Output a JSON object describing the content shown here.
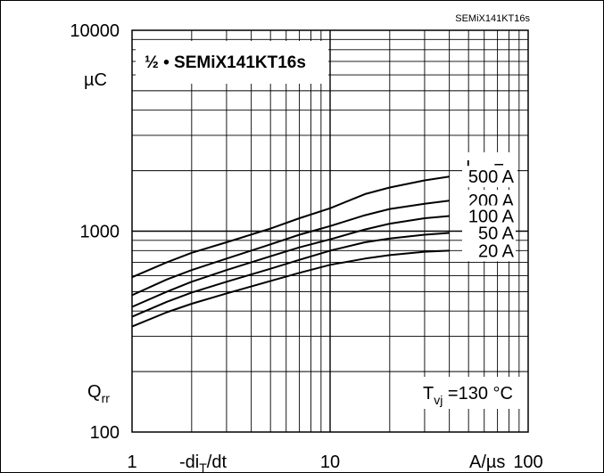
{
  "chart_data": {
    "type": "line",
    "header_tag": "SEMiX141KT16s",
    "title": "½ • SEMiX141KT16s",
    "xscale": "log",
    "yscale": "log",
    "xlim": [
      1,
      100
    ],
    "ylim": [
      100,
      10000
    ],
    "grid": true,
    "x_tick_labels": [
      {
        "value": 1,
        "text": "1"
      },
      {
        "value": 10,
        "text": "10"
      },
      {
        "value": 100,
        "text": "100"
      }
    ],
    "y_tick_labels": [
      {
        "value": 100,
        "text": "100"
      },
      {
        "value": 1000,
        "text": "1000"
      },
      {
        "value": 10000,
        "text": "10000"
      }
    ],
    "xlabel": {
      "main": "-di",
      "sub": "T",
      "tail": "/dt"
    },
    "x_unit": "A/µs",
    "ylabel": {
      "main": "Q",
      "sub": "rr"
    },
    "y_unit": "µC",
    "legend_title": {
      "main": "I",
      "sub": "FM",
      "tail": " ="
    },
    "condition": {
      "main": "T",
      "sub": "vj",
      "tail": " =130 °C"
    },
    "series": [
      {
        "name": "500 A",
        "x": [
          1,
          1.5,
          2,
          3,
          5,
          7,
          10,
          15,
          20,
          30,
          40
        ],
        "y": [
          590,
          700,
          780,
          880,
          1030,
          1160,
          1300,
          1530,
          1650,
          1790,
          1870
        ]
      },
      {
        "name": "200 A",
        "x": [
          1,
          1.5,
          2,
          3,
          5,
          7,
          10,
          15,
          20,
          30,
          40
        ],
        "y": [
          480,
          575,
          640,
          730,
          860,
          960,
          1060,
          1200,
          1290,
          1370,
          1420
        ]
      },
      {
        "name": "100 A",
        "x": [
          1,
          1.5,
          2,
          3,
          5,
          7,
          10,
          15,
          20,
          30,
          40
        ],
        "y": [
          420,
          500,
          560,
          640,
          750,
          830,
          910,
          1020,
          1090,
          1160,
          1190
        ]
      },
      {
        "name": "50 A",
        "x": [
          1,
          1.5,
          2,
          3,
          5,
          7,
          10,
          15,
          20,
          30,
          40
        ],
        "y": [
          375,
          445,
          495,
          560,
          650,
          720,
          800,
          880,
          920,
          960,
          980
        ]
      },
      {
        "name": "20 A",
        "x": [
          1,
          1.5,
          2,
          3,
          5,
          7,
          10,
          15,
          20,
          30,
          40
        ],
        "y": [
          335,
          395,
          435,
          490,
          565,
          620,
          680,
          730,
          760,
          790,
          800
        ]
      }
    ]
  }
}
